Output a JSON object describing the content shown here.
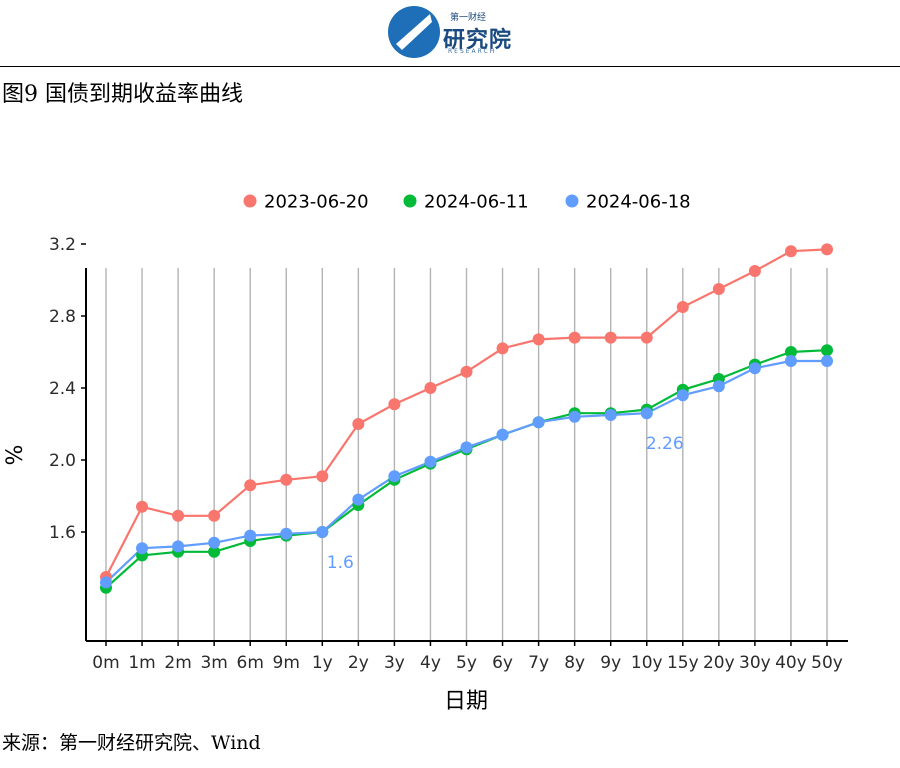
{
  "header": {
    "logo_small": "第一财经",
    "logo_name": "研究院",
    "logo_en": "RESEARCH",
    "figure_title": "图9 国债到期收益率曲线"
  },
  "footer": {
    "source": "来源：第一财经研究院、Wind"
  },
  "chart_data": {
    "type": "line",
    "title": "",
    "xlabel": "日期",
    "ylabel": "%",
    "categories": [
      "0m",
      "1m",
      "2m",
      "3m",
      "6m",
      "9m",
      "1y",
      "2y",
      "3y",
      "4y",
      "5y",
      "6y",
      "7y",
      "8y",
      "9y",
      "10y",
      "15y",
      "20y",
      "30y",
      "40y",
      "50y"
    ],
    "ylim": [
      1.0,
      3.25
    ],
    "yticks": [
      "1.6",
      "2.0",
      "2.4",
      "2.8",
      "3.2"
    ],
    "grid": "vertical lines at each category",
    "legend_position": "top",
    "series": [
      {
        "name": "2023-06-20",
        "color": "#F8766D",
        "values": [
          1.35,
          1.74,
          1.69,
          1.69,
          1.86,
          1.89,
          1.91,
          2.2,
          2.31,
          2.4,
          2.49,
          2.62,
          2.67,
          2.68,
          2.68,
          2.68,
          2.85,
          2.95,
          3.05,
          3.16,
          3.17
        ]
      },
      {
        "name": "2024-06-11",
        "color": "#00BA38",
        "values": [
          1.29,
          1.47,
          1.49,
          1.49,
          1.55,
          1.58,
          1.6,
          1.75,
          1.89,
          1.98,
          2.06,
          2.14,
          2.21,
          2.26,
          2.26,
          2.28,
          2.39,
          2.45,
          2.53,
          2.6,
          2.61
        ]
      },
      {
        "name": "2024-06-18",
        "color": "#619CFF",
        "values": [
          1.32,
          1.51,
          1.52,
          1.54,
          1.58,
          1.59,
          1.6,
          1.78,
          1.91,
          1.99,
          2.07,
          2.14,
          2.21,
          2.24,
          2.25,
          2.26,
          2.36,
          2.41,
          2.51,
          2.55,
          2.55
        ]
      }
    ],
    "annotations": [
      {
        "text": "1.6",
        "category": "1y",
        "value": 1.6,
        "color": "#619CFF"
      },
      {
        "text": "2.26",
        "category": "10y",
        "value": 2.26,
        "color": "#619CFF"
      }
    ]
  }
}
